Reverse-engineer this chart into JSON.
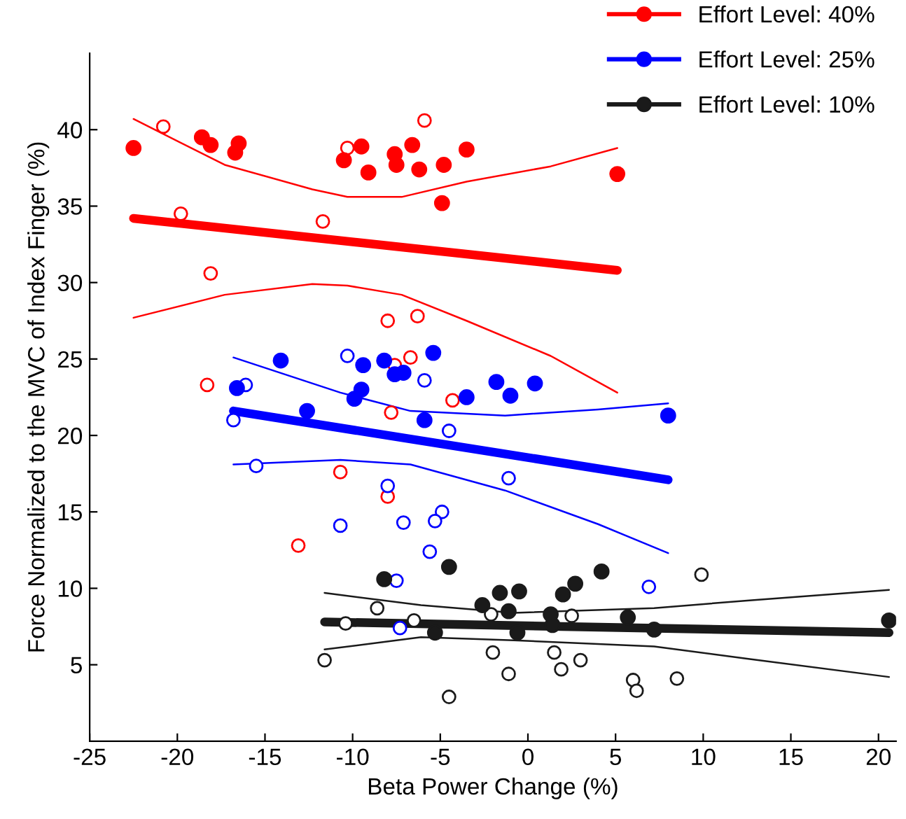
{
  "chart_data": {
    "type": "scatter",
    "xlabel": "Beta Power Change (%)",
    "ylabel": "Force Normalized to the MVC of Index Finger (%)",
    "xlim": [
      -25,
      21
    ],
    "xticks": [
      -25,
      -20,
      -15,
      -10,
      -5,
      0,
      5,
      10,
      15,
      20
    ],
    "ylim": [
      0,
      45
    ],
    "yticks": [
      5,
      10,
      15,
      20,
      25,
      30,
      35,
      40
    ],
    "grid": false,
    "legend": "top right",
    "marker": "circle",
    "series": [
      {
        "name": "Effort Level: 40%",
        "type": "scatter",
        "color": "#ff0000",
        "x": [
          -22.5,
          -18.6,
          -18.1,
          -16.5,
          -16.7,
          -10.5,
          -9.5,
          -9.1,
          -7.6,
          -7.5,
          -6.6,
          -6.2,
          -4.8,
          -4.9,
          -3.5,
          5.1
        ],
        "values": [
          38.8,
          39.5,
          39.0,
          39.1,
          38.5,
          38.0,
          38.9,
          37.2,
          38.4,
          37.7,
          39.0,
          37.4,
          37.7,
          35.2,
          38.7,
          37.1
        ]
      },
      {
        "type": "scatter",
        "color": "#ff0000",
        "x": [
          -20.8,
          -5.9,
          -10.3,
          -19.8,
          -11.7,
          -18.1,
          -8.0,
          -6.3,
          -18.3,
          -6.7,
          -7.6,
          -4.3,
          -7.8,
          -10.7,
          -8.0,
          -13.1
        ],
        "values": [
          40.2,
          40.6,
          38.8,
          34.5,
          34.0,
          30.6,
          27.5,
          27.8,
          23.3,
          25.1,
          24.6,
          22.3,
          21.5,
          17.6,
          16.0,
          12.8
        ]
      },
      {
        "type": "line",
        "marker": "none",
        "color": "#ff0000",
        "x": [
          -22.5,
          5.1
        ],
        "values": [
          34.2,
          30.8
        ]
      },
      {
        "type": "line",
        "marker": "none",
        "color": "#ff0000",
        "x": [
          -22.5,
          -17.3,
          -12.3,
          -10.3,
          -7.2,
          -3.5,
          1.3,
          5.1
        ],
        "values": [
          40.7,
          37.7,
          36.1,
          35.6,
          35.6,
          36.6,
          37.6,
          38.8
        ]
      },
      {
        "type": "line",
        "marker": "none",
        "color": "#ff0000",
        "x": [
          -22.5,
          -17.3,
          -12.3,
          -10.3,
          -7.2,
          -3.5,
          1.3,
          5.1
        ],
        "values": [
          27.7,
          29.2,
          29.9,
          29.8,
          29.2,
          27.5,
          25.2,
          22.8
        ]
      },
      {
        "name": "Effort Level: 25%",
        "type": "scatter",
        "color": "#0000ff",
        "x": [
          -16.6,
          -14.1,
          -12.6,
          -9.4,
          -9.5,
          -9.9,
          -8.2,
          -7.6,
          -7.1,
          -5.4,
          -5.9,
          -3.5,
          -1.8,
          -1.0,
          0.4,
          8.0
        ],
        "values": [
          23.1,
          24.9,
          21.6,
          24.6,
          23.0,
          22.4,
          24.9,
          24.0,
          24.1,
          25.4,
          21.0,
          22.5,
          23.5,
          22.6,
          23.4,
          21.3
        ]
      },
      {
        "type": "scatter",
        "color": "#0000ff",
        "x": [
          -16.1,
          -10.3,
          -5.9,
          -16.8,
          -4.5,
          -15.5,
          -1.1,
          -8.0,
          -4.9,
          -5.3,
          -7.1,
          -10.7,
          -5.6,
          -7.5,
          6.9,
          -7.3
        ],
        "values": [
          23.3,
          25.2,
          23.6,
          21.0,
          20.3,
          18.0,
          17.2,
          16.7,
          15.0,
          14.4,
          14.3,
          14.1,
          12.4,
          10.5,
          10.1,
          7.4
        ]
      },
      {
        "type": "line",
        "marker": "none",
        "color": "#0000ff",
        "x": [
          -16.8,
          8.0
        ],
        "values": [
          21.6,
          17.1
        ]
      },
      {
        "type": "line",
        "marker": "none",
        "color": "#0000ff",
        "x": [
          -16.8,
          -10.7,
          -6.7,
          -1.3,
          4.0,
          8.0
        ],
        "values": [
          25.1,
          22.8,
          21.6,
          21.3,
          21.7,
          22.1
        ]
      },
      {
        "type": "line",
        "marker": "none",
        "color": "#0000ff",
        "x": [
          -16.8,
          -10.7,
          -6.7,
          -1.3,
          4.0,
          8.0
        ],
        "values": [
          18.1,
          18.4,
          18.1,
          16.4,
          14.2,
          12.3
        ]
      },
      {
        "name": "Effort Level: 10%",
        "type": "scatter",
        "color": "#1a1a1a",
        "x": [
          -8.2,
          -4.5,
          -1.6,
          -0.5,
          -2.6,
          -1.1,
          1.3,
          2.0,
          2.7,
          4.2,
          5.7,
          -5.3,
          -0.6,
          1.4,
          7.2,
          20.6
        ],
        "values": [
          10.6,
          11.4,
          9.7,
          9.8,
          8.9,
          8.5,
          8.3,
          9.6,
          10.3,
          11.1,
          8.1,
          7.1,
          7.1,
          7.6,
          7.3,
          7.9
        ]
      },
      {
        "type": "scatter",
        "color": "#1a1a1a",
        "x": [
          -11.6,
          -10.4,
          -8.6,
          -6.5,
          -2.1,
          2.5,
          -2.0,
          -1.1,
          1.5,
          1.9,
          3.0,
          -4.5,
          6.0,
          6.2,
          8.5,
          9.9
        ],
        "values": [
          5.3,
          7.7,
          8.7,
          7.9,
          8.3,
          8.2,
          5.8,
          4.4,
          5.8,
          4.7,
          5.3,
          2.9,
          4.0,
          3.3,
          4.1,
          10.9
        ]
      },
      {
        "type": "line",
        "marker": "none",
        "color": "#1a1a1a",
        "x": [
          -11.6,
          20.6
        ],
        "values": [
          7.8,
          7.1
        ]
      },
      {
        "type": "line",
        "marker": "none",
        "color": "#1a1a1a",
        "x": [
          -11.6,
          -6.1,
          -0.8,
          7.2,
          12.5,
          20.6
        ],
        "values": [
          9.7,
          8.9,
          8.4,
          8.7,
          9.2,
          9.9
        ]
      },
      {
        "type": "line",
        "marker": "none",
        "color": "#1a1a1a",
        "x": [
          -11.6,
          -6.1,
          -0.8,
          7.2,
          12.5,
          20.6
        ],
        "values": [
          6.0,
          6.8,
          6.6,
          6.2,
          5.4,
          4.2
        ]
      }
    ]
  }
}
